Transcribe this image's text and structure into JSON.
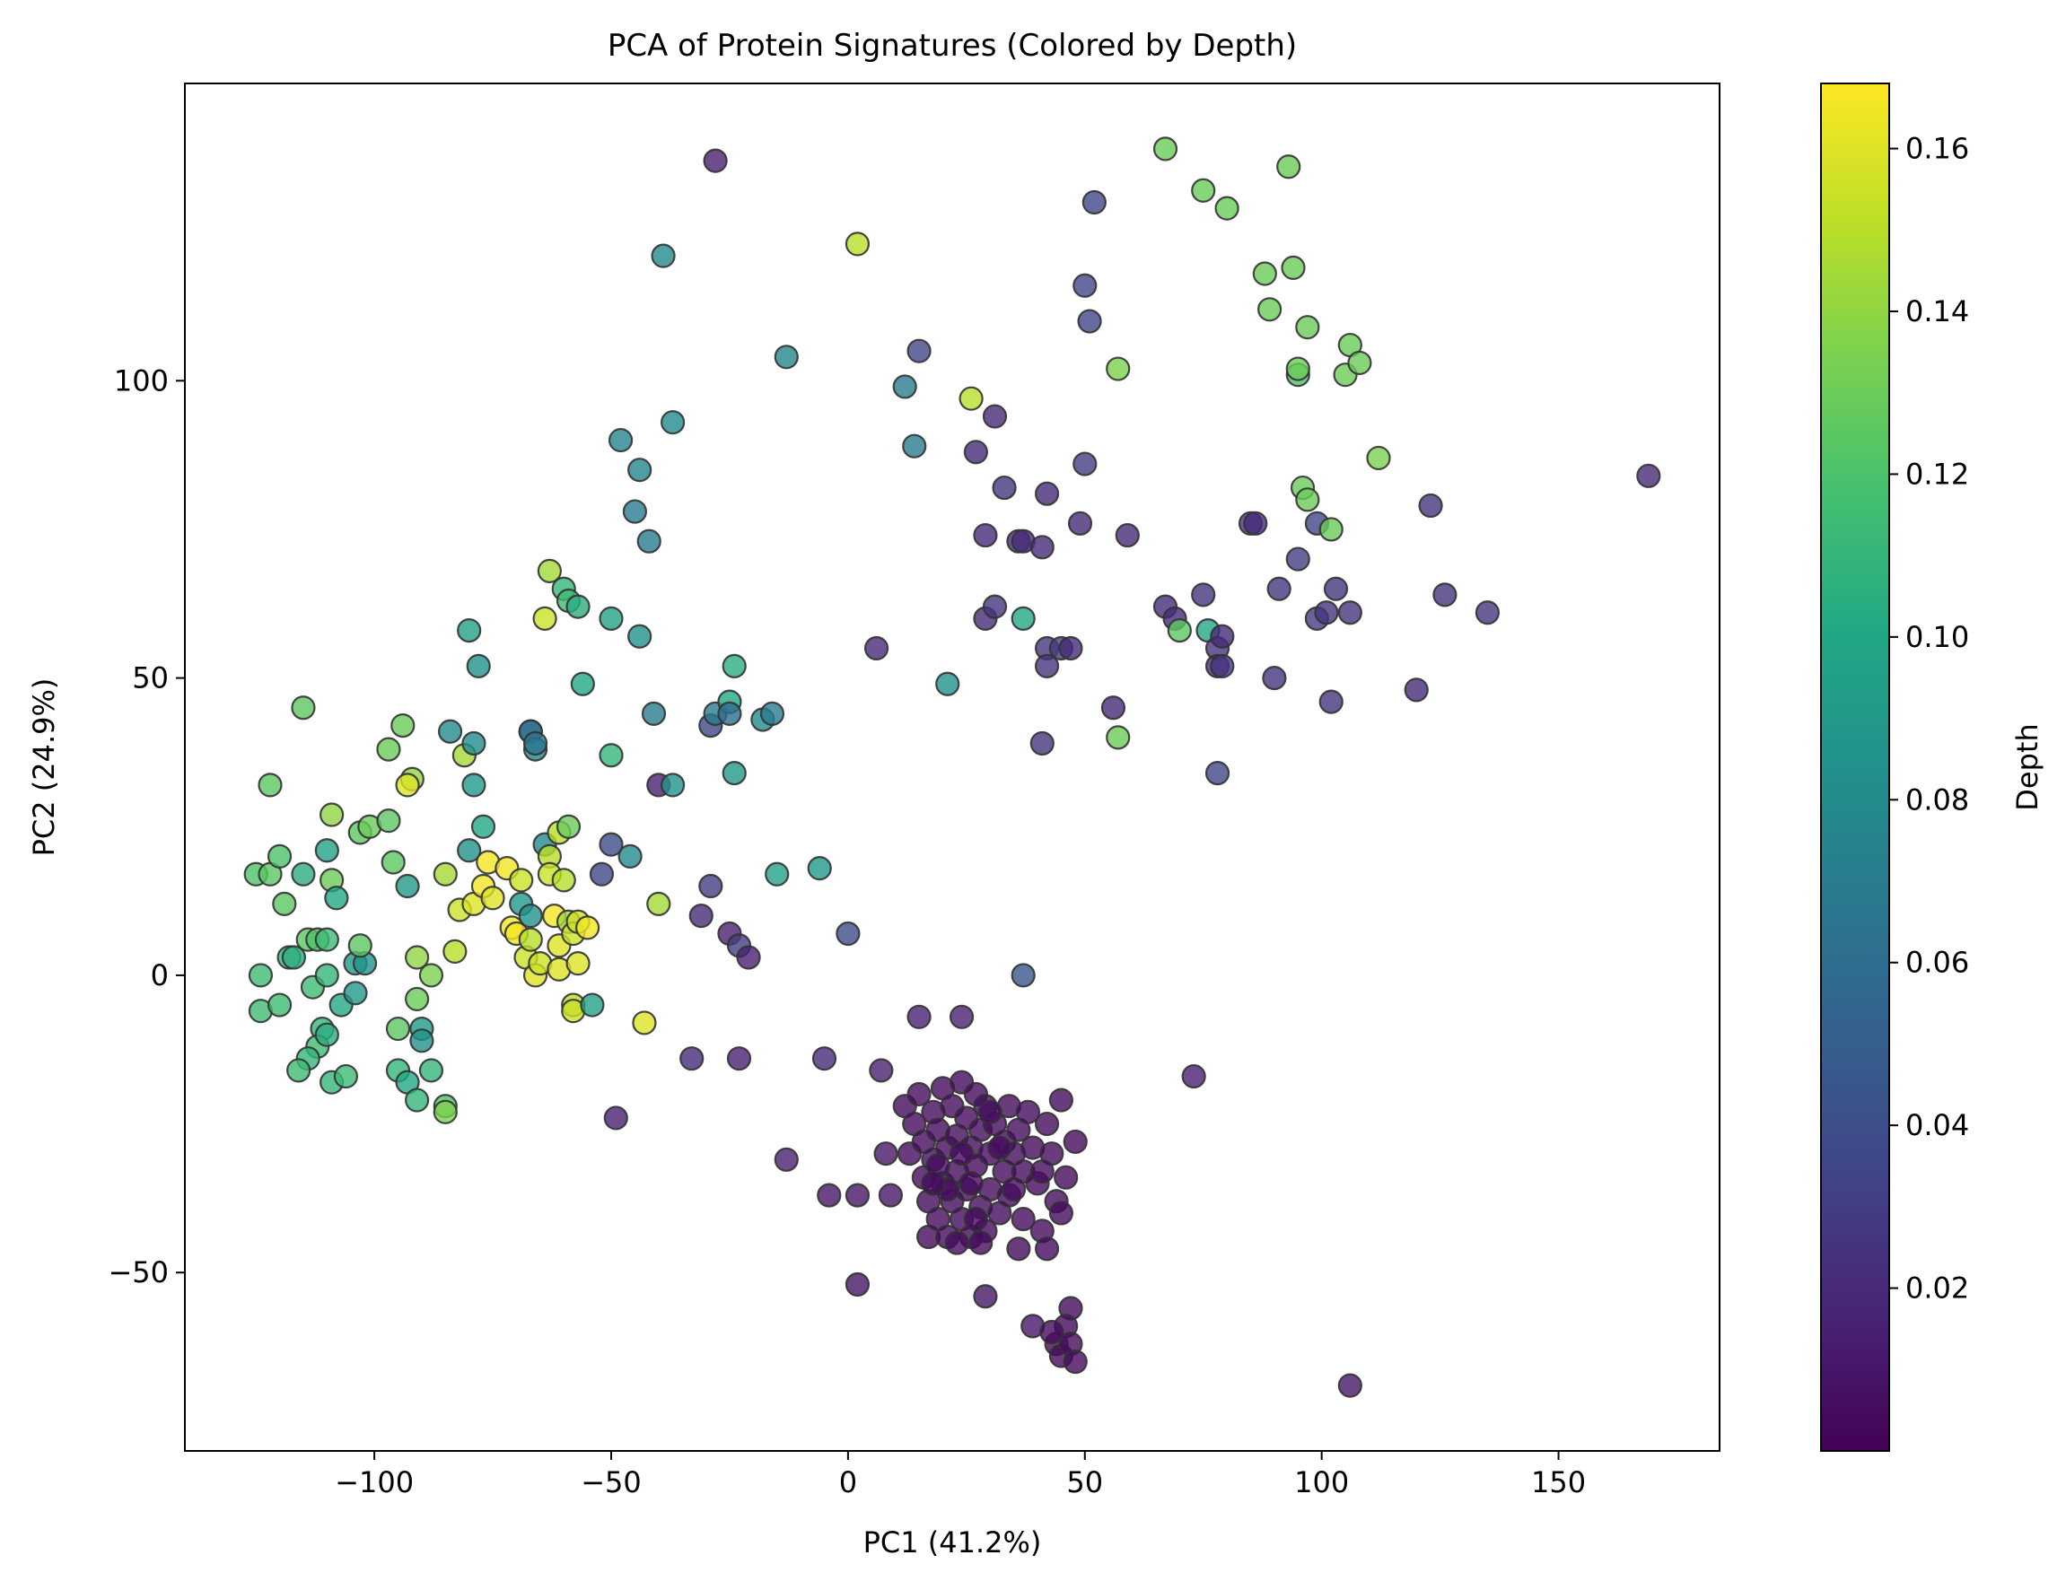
{
  "chart_data": {
    "type": "scatter",
    "title": "PCA of Protein Signatures (Colored by Depth)",
    "xlabel": "PC1 (41.2%)",
    "ylabel": "PC2 (24.9%)",
    "xlim": [
      -140,
      184
    ],
    "ylim": [
      -80,
      150
    ],
    "xticks": [
      -100,
      -50,
      0,
      50,
      100,
      150
    ],
    "yticks": [
      -50,
      0,
      50,
      100
    ],
    "xtick_labels": [
      "−100",
      "−50",
      "0",
      "50",
      "100",
      "150"
    ],
    "ytick_labels": [
      "−50",
      "0",
      "50",
      "100"
    ],
    "grid": false,
    "legend": "none",
    "colorbar": {
      "label": "Depth",
      "colormap": "viridis",
      "range": [
        0.0,
        0.168
      ],
      "ticks": [
        0.02,
        0.04,
        0.06,
        0.08,
        0.1,
        0.12,
        0.14,
        0.16
      ],
      "tick_labels": [
        "0.02",
        "0.04",
        "0.06",
        "0.08",
        "0.10",
        "0.12",
        "0.14",
        "0.16"
      ]
    },
    "points": [
      [
        -125,
        17,
        0.12
      ],
      [
        -122,
        17,
        0.125
      ],
      [
        -120,
        20,
        0.12
      ],
      [
        -122,
        32,
        0.125
      ],
      [
        -124,
        0,
        0.115
      ],
      [
        -124,
        -6,
        0.115
      ],
      [
        -120,
        -5,
        0.115
      ],
      [
        -118,
        3,
        0.11
      ],
      [
        -117,
        3,
        0.105
      ],
      [
        -119,
        12,
        0.125
      ],
      [
        -115,
        17,
        0.105
      ],
      [
        -115,
        45,
        0.125
      ],
      [
        -114,
        6,
        0.125
      ],
      [
        -112,
        6,
        0.12
      ],
      [
        -113,
        -2,
        0.115
      ],
      [
        -110,
        6,
        0.115
      ],
      [
        -110,
        0,
        0.11
      ],
      [
        -110,
        21,
        0.095
      ],
      [
        -109,
        27,
        0.14
      ],
      [
        -109,
        16,
        0.13
      ],
      [
        -108,
        13,
        0.1
      ],
      [
        -111,
        -9,
        0.11
      ],
      [
        -112,
        -12,
        0.115
      ],
      [
        -114,
        -14,
        0.11
      ],
      [
        -116,
        -16,
        0.115
      ],
      [
        -110,
        -10,
        0.105
      ],
      [
        -109,
        -18,
        0.11
      ],
      [
        -106,
        -17,
        0.115
      ],
      [
        -107,
        -5,
        0.1
      ],
      [
        -104,
        -3,
        0.09
      ],
      [
        -104,
        2,
        0.09
      ],
      [
        -102,
        2,
        0.085
      ],
      [
        -103,
        5,
        0.125
      ],
      [
        -103,
        24,
        0.125
      ],
      [
        -101,
        25,
        0.13
      ],
      [
        -97,
        26,
        0.125
      ],
      [
        -96,
        19,
        0.125
      ],
      [
        -97,
        38,
        0.13
      ],
      [
        -94,
        42,
        0.13
      ],
      [
        -92,
        33,
        0.14
      ],
      [
        -93,
        32,
        0.16
      ],
      [
        -93,
        15,
        0.09
      ],
      [
        -91,
        3,
        0.14
      ],
      [
        -91,
        -4,
        0.13
      ],
      [
        -95,
        -9,
        0.125
      ],
      [
        -95,
        -16,
        0.11
      ],
      [
        -90,
        -9,
        0.09
      ],
      [
        -90,
        -11,
        0.085
      ],
      [
        -88,
        0,
        0.135
      ],
      [
        -88,
        -16,
        0.11
      ],
      [
        -93,
        -18,
        0.1
      ],
      [
        -91,
        -21,
        0.11
      ],
      [
        -85,
        -22,
        0.12
      ],
      [
        -85,
        -23,
        0.135
      ],
      [
        -84,
        41,
        0.08
      ],
      [
        -81,
        37,
        0.145
      ],
      [
        -79,
        39,
        0.08
      ],
      [
        -80,
        58,
        0.095
      ],
      [
        -78,
        52,
        0.085
      ],
      [
        -79,
        32,
        0.09
      ],
      [
        -80,
        21,
        0.085
      ],
      [
        -85,
        17,
        0.145
      ],
      [
        -83,
        4,
        0.15
      ],
      [
        -82,
        11,
        0.155
      ],
      [
        -79,
        12,
        0.16
      ],
      [
        -77,
        15,
        0.165
      ],
      [
        -76,
        19,
        0.165
      ],
      [
        -77,
        25,
        0.1
      ],
      [
        -75,
        13,
        0.16
      ],
      [
        -72,
        18,
        0.165
      ],
      [
        -71,
        8,
        0.165
      ],
      [
        -69,
        12,
        0.09
      ],
      [
        -70,
        7,
        0.165
      ],
      [
        -68,
        3,
        0.155
      ],
      [
        -69,
        16,
        0.155
      ],
      [
        -67,
        6,
        0.15
      ],
      [
        -67,
        10,
        0.085
      ],
      [
        -66,
        0,
        0.16
      ],
      [
        -65,
        2,
        0.155
      ],
      [
        -67,
        41,
        0.07
      ],
      [
        -67,
        41,
        0.06
      ],
      [
        -66,
        38,
        0.075
      ],
      [
        -66,
        39,
        0.065
      ],
      [
        -64,
        22,
        0.08
      ],
      [
        -63,
        20,
        0.15
      ],
      [
        -63,
        17,
        0.155
      ],
      [
        -64,
        60,
        0.155
      ],
      [
        -63,
        68,
        0.145
      ],
      [
        -60,
        65,
        0.11
      ],
      [
        -59,
        63,
        0.115
      ],
      [
        -57,
        62,
        0.105
      ],
      [
        -61,
        24,
        0.15
      ],
      [
        -59,
        25,
        0.13
      ],
      [
        -60,
        16,
        0.15
      ],
      [
        -62,
        10,
        0.165
      ],
      [
        -61,
        5,
        0.16
      ],
      [
        -61,
        1,
        0.16
      ],
      [
        -59,
        9,
        0.145
      ],
      [
        -58,
        7,
        0.155
      ],
      [
        -57,
        9,
        0.155
      ],
      [
        -57,
        2,
        0.16
      ],
      [
        -55,
        8,
        0.165
      ],
      [
        -58,
        -5,
        0.15
      ],
      [
        -58,
        -6,
        0.155
      ],
      [
        -54,
        -5,
        0.095
      ],
      [
        -56,
        49,
        0.1
      ],
      [
        -50,
        60,
        0.095
      ],
      [
        -50,
        37,
        0.11
      ],
      [
        -48,
        90,
        0.075
      ],
      [
        -44,
        85,
        0.075
      ],
      [
        -45,
        78,
        0.07
      ],
      [
        -42,
        73,
        0.07
      ],
      [
        -44,
        57,
        0.085
      ],
      [
        -46,
        20,
        0.08
      ],
      [
        -50,
        22,
        0.04
      ],
      [
        -52,
        17,
        0.035
      ],
      [
        -41,
        44,
        0.07
      ],
      [
        -40,
        32,
        0.015
      ],
      [
        -40,
        12,
        0.145
      ],
      [
        -37,
        32,
        0.085
      ],
      [
        -37,
        93,
        0.08
      ],
      [
        -39,
        121,
        0.08
      ],
      [
        -43,
        -8,
        0.16
      ],
      [
        -49,
        -24,
        0.015
      ],
      [
        -29,
        42,
        0.035
      ],
      [
        -29,
        15,
        0.03
      ],
      [
        -28,
        44,
        0.07
      ],
      [
        -25,
        46,
        0.1
      ],
      [
        -24,
        52,
        0.105
      ],
      [
        -25,
        44,
        0.06
      ],
      [
        -24,
        34,
        0.09
      ],
      [
        -18,
        43,
        0.08
      ],
      [
        -16,
        44,
        0.07
      ],
      [
        -15,
        17,
        0.095
      ],
      [
        -31,
        10,
        0.02
      ],
      [
        -25,
        7,
        0.015
      ],
      [
        -23,
        5,
        0.03
      ],
      [
        -21,
        3,
        0.015
      ],
      [
        -33,
        -14,
        0.02
      ],
      [
        -23,
        -14,
        0.015
      ],
      [
        -13,
        104,
        0.075
      ],
      [
        -6,
        18,
        0.09
      ],
      [
        -5,
        -14,
        0.02
      ],
      [
        0,
        7,
        0.04
      ],
      [
        -28,
        137,
        0.015
      ],
      [
        2,
        123,
        0.15
      ],
      [
        -13,
        -31,
        0.015
      ],
      [
        -4,
        -37,
        0.01
      ],
      [
        2,
        -37,
        0.01
      ],
      [
        2,
        -52,
        0.01
      ],
      [
        6,
        55,
        0.02
      ],
      [
        7,
        -16,
        0.015
      ],
      [
        8,
        -30,
        0.01
      ],
      [
        9,
        -37,
        0.01
      ],
      [
        12,
        99,
        0.07
      ],
      [
        14,
        89,
        0.07
      ],
      [
        15,
        105,
        0.035
      ],
      [
        15,
        -7,
        0.015
      ],
      [
        21,
        49,
        0.085
      ],
      [
        24,
        -7,
        0.015
      ],
      [
        26,
        97,
        0.15
      ],
      [
        27,
        88,
        0.02
      ],
      [
        29,
        74,
        0.02
      ],
      [
        31,
        94,
        0.02
      ],
      [
        29,
        60,
        0.02
      ],
      [
        31,
        62,
        0.025
      ],
      [
        33,
        82,
        0.025
      ],
      [
        36,
        73,
        0.02
      ],
      [
        37,
        73,
        0.02
      ],
      [
        37,
        60,
        0.1
      ],
      [
        37,
        0,
        0.045
      ],
      [
        29,
        -54,
        0.01
      ],
      [
        39,
        -59,
        0.01
      ],
      [
        41,
        72,
        0.02
      ],
      [
        42,
        81,
        0.02
      ],
      [
        42,
        55,
        0.025
      ],
      [
        42,
        52,
        0.025
      ],
      [
        41,
        39,
        0.025
      ],
      [
        45,
        55,
        0.03
      ],
      [
        47,
        55,
        0.02
      ],
      [
        49,
        76,
        0.02
      ],
      [
        50,
        86,
        0.03
      ],
      [
        50,
        116,
        0.035
      ],
      [
        51,
        110,
        0.035
      ],
      [
        52,
        130,
        0.035
      ],
      [
        56,
        45,
        0.02
      ],
      [
        57,
        40,
        0.13
      ],
      [
        57,
        102,
        0.135
      ],
      [
        59,
        74,
        0.02
      ],
      [
        67,
        62,
        0.02
      ],
      [
        69,
        60,
        0.02
      ],
      [
        70,
        58,
        0.125
      ],
      [
        67,
        139,
        0.13
      ],
      [
        75,
        132,
        0.13
      ],
      [
        75,
        64,
        0.025
      ],
      [
        76,
        58,
        0.1
      ],
      [
        78,
        55,
        0.025
      ],
      [
        78,
        52,
        0.02
      ],
      [
        79,
        52,
        0.025
      ],
      [
        79,
        57,
        0.02
      ],
      [
        78,
        34,
        0.035
      ],
      [
        80,
        129,
        0.13
      ],
      [
        73,
        -17,
        0.015
      ],
      [
        85,
        76,
        0.025
      ],
      [
        86,
        76,
        0.02
      ],
      [
        88,
        118,
        0.13
      ],
      [
        89,
        112,
        0.13
      ],
      [
        91,
        65,
        0.025
      ],
      [
        90,
        50,
        0.025
      ],
      [
        93,
        136,
        0.13
      ],
      [
        94,
        119,
        0.13
      ],
      [
        95,
        101,
        0.12
      ],
      [
        95,
        102,
        0.13
      ],
      [
        95,
        70,
        0.03
      ],
      [
        96,
        82,
        0.13
      ],
      [
        97,
        80,
        0.13
      ],
      [
        97,
        109,
        0.13
      ],
      [
        99,
        60,
        0.03
      ],
      [
        99,
        76,
        0.035
      ],
      [
        101,
        61,
        0.025
      ],
      [
        102,
        75,
        0.13
      ],
      [
        102,
        46,
        0.025
      ],
      [
        103,
        65,
        0.025
      ],
      [
        105,
        101,
        0.13
      ],
      [
        106,
        106,
        0.13
      ],
      [
        106,
        61,
        0.025
      ],
      [
        108,
        103,
        0.13
      ],
      [
        112,
        87,
        0.135
      ],
      [
        106,
        -69,
        0.01
      ],
      [
        120,
        48,
        0.02
      ],
      [
        123,
        79,
        0.025
      ],
      [
        126,
        64,
        0.025
      ],
      [
        135,
        61,
        0.025
      ],
      [
        169,
        84,
        0.02
      ],
      [
        12,
        -22,
        0.005
      ],
      [
        13,
        -30,
        0.005
      ],
      [
        14,
        -25,
        0.005
      ],
      [
        15,
        -20,
        0.005
      ],
      [
        16,
        -28,
        0.005
      ],
      [
        16,
        -34,
        0.005
      ],
      [
        17,
        -38,
        0.005
      ],
      [
        17,
        -44,
        0.005
      ],
      [
        18,
        -23,
        0.005
      ],
      [
        18,
        -31,
        0.005
      ],
      [
        19,
        -26,
        0.005
      ],
      [
        19,
        -41,
        0.005
      ],
      [
        20,
        -19,
        0.005
      ],
      [
        20,
        -35,
        0.005
      ],
      [
        21,
        -29,
        0.005
      ],
      [
        21,
        -44,
        0.005
      ],
      [
        22,
        -22,
        0.005
      ],
      [
        22,
        -38,
        0.005
      ],
      [
        23,
        -27,
        0.005
      ],
      [
        23,
        -33,
        0.005
      ],
      [
        24,
        -18,
        0.005
      ],
      [
        24,
        -41,
        0.005
      ],
      [
        25,
        -24,
        0.005
      ],
      [
        25,
        -36,
        0.005
      ],
      [
        26,
        -29,
        0.005
      ],
      [
        26,
        -44,
        0.005
      ],
      [
        27,
        -20,
        0.005
      ],
      [
        27,
        -32,
        0.005
      ],
      [
        28,
        -39,
        0.005
      ],
      [
        28,
        -26,
        0.005
      ],
      [
        29,
        -22,
        0.005
      ],
      [
        29,
        -43,
        0.005
      ],
      [
        30,
        -30,
        0.005
      ],
      [
        30,
        -36,
        0.005
      ],
      [
        31,
        -25,
        0.005
      ],
      [
        32,
        -40,
        0.005
      ],
      [
        33,
        -28,
        0.005
      ],
      [
        33,
        -33,
        0.005
      ],
      [
        34,
        -22,
        0.005
      ],
      [
        34,
        -37,
        0.005
      ],
      [
        35,
        -30,
        0.005
      ],
      [
        36,
        -26,
        0.005
      ],
      [
        37,
        -33,
        0.005
      ],
      [
        37,
        -41,
        0.005
      ],
      [
        38,
        -23,
        0.005
      ],
      [
        39,
        -29,
        0.005
      ],
      [
        40,
        -35,
        0.005
      ],
      [
        41,
        -43,
        0.005
      ],
      [
        42,
        -25,
        0.005
      ],
      [
        42,
        -46,
        0.005
      ],
      [
        43,
        -30,
        0.005
      ],
      [
        44,
        -38,
        0.005
      ],
      [
        45,
        -40,
        0.005
      ],
      [
        45,
        -21,
        0.005
      ],
      [
        46,
        -34,
        0.005
      ],
      [
        48,
        -28,
        0.005
      ],
      [
        47,
        -56,
        0.005
      ],
      [
        46,
        -59,
        0.005
      ],
      [
        44,
        -62,
        0.005
      ],
      [
        45,
        -64,
        0.005
      ],
      [
        47,
        -62,
        0.005
      ],
      [
        48,
        -65,
        0.005
      ],
      [
        43,
        -60,
        0.005
      ],
      [
        41,
        -33,
        0.005
      ],
      [
        36,
        -46,
        0.005
      ],
      [
        26,
        -35,
        0.005
      ],
      [
        19,
        -32,
        0.005
      ],
      [
        23,
        -45,
        0.005
      ],
      [
        30,
        -23,
        0.005
      ],
      [
        21,
        -36,
        0.005
      ],
      [
        27,
        -41,
        0.005
      ],
      [
        32,
        -29,
        0.005
      ],
      [
        24,
        -30,
        0.005
      ],
      [
        35,
        -36,
        0.005
      ],
      [
        18,
        -35,
        0.005
      ],
      [
        28,
        -45,
        0.005
      ]
    ]
  }
}
